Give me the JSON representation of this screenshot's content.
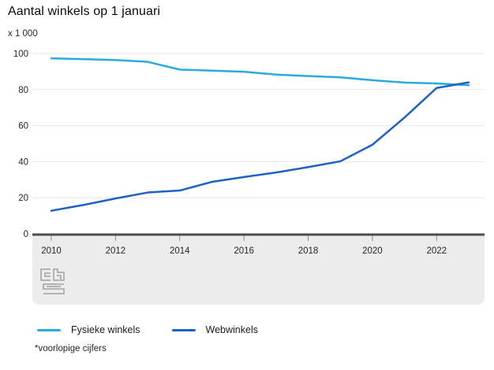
{
  "title": "Aantal winkels op 1 januari",
  "unit_label": "x 1 000",
  "footnote": "*voorlopige cijfers",
  "colors": {
    "fysieke_winkels": "#29abe2",
    "webwinkels": "#1d61c2",
    "grid": "#e6e6e6",
    "axis": "#4d4d4d",
    "tick": "#8c8c8c",
    "axis_band": "#ececec",
    "logo": "#b3b3b3",
    "text": "#262626"
  },
  "legend": [
    {
      "label": "Fysieke winkels",
      "color": "#29abe2"
    },
    {
      "label": "Webwinkels",
      "color": "#1d61c2"
    }
  ],
  "chart_data": {
    "type": "line",
    "title": "Aantal winkels op 1 januari",
    "ylabel": "x 1 000",
    "x": [
      2010,
      2011,
      2012,
      2013,
      2014,
      2015,
      2016,
      2017,
      2018,
      2019,
      2020,
      2021,
      2022,
      2023
    ],
    "series": [
      {
        "name": "Fysieke winkels",
        "color": "#29abe2",
        "values": [
          97.3,
          96.9,
          96.4,
          95.4,
          91.1,
          90.5,
          89.9,
          88.3,
          87.5,
          86.8,
          85.2,
          83.9,
          83.4,
          82.4
        ]
      },
      {
        "name": "Webwinkels",
        "color": "#1d61c2",
        "values": [
          12.8,
          16.0,
          19.6,
          22.9,
          24.0,
          28.8,
          31.5,
          34.0,
          37.0,
          40.2,
          49.4,
          64.5,
          80.9,
          84.0
        ]
      }
    ],
    "ylim": [
      0,
      100
    ],
    "yticks": [
      0,
      20,
      40,
      60,
      80,
      100
    ],
    "xticks": [
      2010,
      2012,
      2014,
      2016,
      2018,
      2020,
      2022
    ],
    "grid": true,
    "legend_position": "bottom",
    "note": "2023 values are provisional (voorlopige cijfers)"
  }
}
